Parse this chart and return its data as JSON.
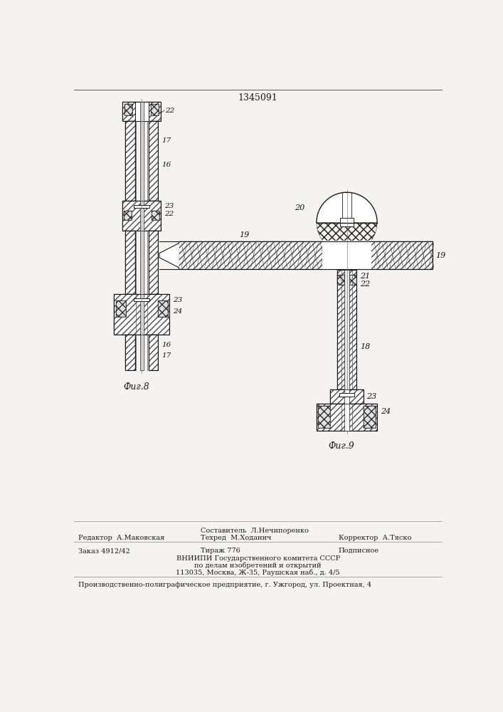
{
  "patent_number": "1345091",
  "bg_color": "#f5f3ef",
  "line_color": "#1a1a1a",
  "fig8_label": "Фиг.8",
  "fig9_label": "Фиг.9",
  "footer": {
    "col1_line1": "Редактор  А.Маковская",
    "col2_line0": "Составитель  Л.Нечипоренко",
    "col2_line1": "Техред  М.Ходанич",
    "col3_line1": "Корректор  А.Тяско",
    "order_line": "Заказ 4912/42",
    "tirage_line": "Тираж 776",
    "podpisnoe": "Подписное",
    "vniip1": "ВНИИПИ Государственного комитета СССР",
    "vniip2": "по делам изобретений и открытий",
    "vniip3": "113035, Москва, Ж-35, Раушская наб., д. 4/5",
    "producer": "Производственно-полиграфическое предприятие, г. Ужгород, ул. Проектная, 4"
  }
}
